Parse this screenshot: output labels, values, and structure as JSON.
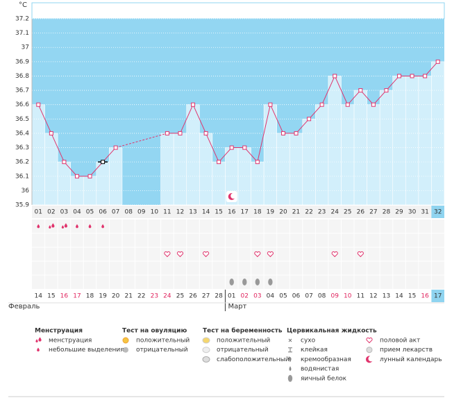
{
  "chart_data": {
    "type": "line",
    "y_label": "°C",
    "categories": [
      "01",
      "02",
      "03",
      "04",
      "05",
      "06",
      "07",
      "08",
      "09",
      "10",
      "11",
      "12",
      "13",
      "14",
      "15",
      "16",
      "17",
      "18",
      "19",
      "20",
      "21",
      "22",
      "23",
      "24",
      "25",
      "26",
      "27",
      "28",
      "29",
      "30",
      "31",
      "32"
    ],
    "values": [
      36.6,
      36.4,
      36.2,
      36.1,
      36.1,
      36.2,
      36.3,
      null,
      null,
      null,
      36.4,
      36.4,
      36.6,
      36.4,
      36.2,
      36.3,
      36.3,
      36.2,
      36.6,
      36.4,
      36.4,
      36.5,
      36.6,
      36.8,
      36.6,
      36.7,
      36.6,
      36.7,
      36.8,
      36.8,
      36.8,
      36.9
    ],
    "color": "#e0336c",
    "ylim": [
      35.9,
      37.2
    ],
    "yticks": [
      35.9,
      36,
      36.1,
      36.2,
      36.3,
      36.4,
      36.5,
      36.6,
      36.7,
      36.8,
      36.9,
      37,
      37.1,
      37.2
    ],
    "grid": true,
    "excluded": [
      "06"
    ],
    "dates": [
      "14",
      "15",
      "16",
      "17",
      "18",
      "19",
      "20",
      "21",
      "22",
      "23",
      "24",
      "25",
      "26",
      "27",
      "28",
      "01",
      "02",
      "03",
      "04",
      "05",
      "06",
      "07",
      "08",
      "09",
      "10",
      "11",
      "12",
      "13",
      "14",
      "15",
      "16",
      "17"
    ],
    "weekend_dates": [
      2,
      3,
      9,
      10,
      16,
      17,
      23,
      24,
      30
    ],
    "today_index": 31,
    "months": [
      "Февраль",
      "Март"
    ],
    "events": {
      "menstruation": [
        "02",
        "03"
      ],
      "light": [
        "01",
        "04",
        "05",
        "06"
      ],
      "intercourse": [
        "11",
        "12",
        "14",
        "18",
        "19",
        "24",
        "26"
      ],
      "egg_white": [
        "16",
        "17",
        "18",
        "19"
      ],
      "moon": [
        "16"
      ]
    }
  },
  "legend": [
    {
      "title": "Менструация",
      "items": [
        "менструация",
        "небольшие выделения"
      ]
    },
    {
      "title": "Тест на овуляцию",
      "items": [
        "положительный",
        "отрицательный"
      ]
    },
    {
      "title": "Тест на беременность",
      "items": [
        "положительный",
        "отрицательный",
        "слабоположительный"
      ]
    },
    {
      "title": "Цервикальная жидкость",
      "items": [
        "сухо",
        "клейкая",
        "кремообразная",
        "водянистая",
        "яичный белок"
      ]
    },
    {
      "items": [
        "половой акт",
        "прием лекарств",
        "лунный календарь"
      ]
    }
  ]
}
